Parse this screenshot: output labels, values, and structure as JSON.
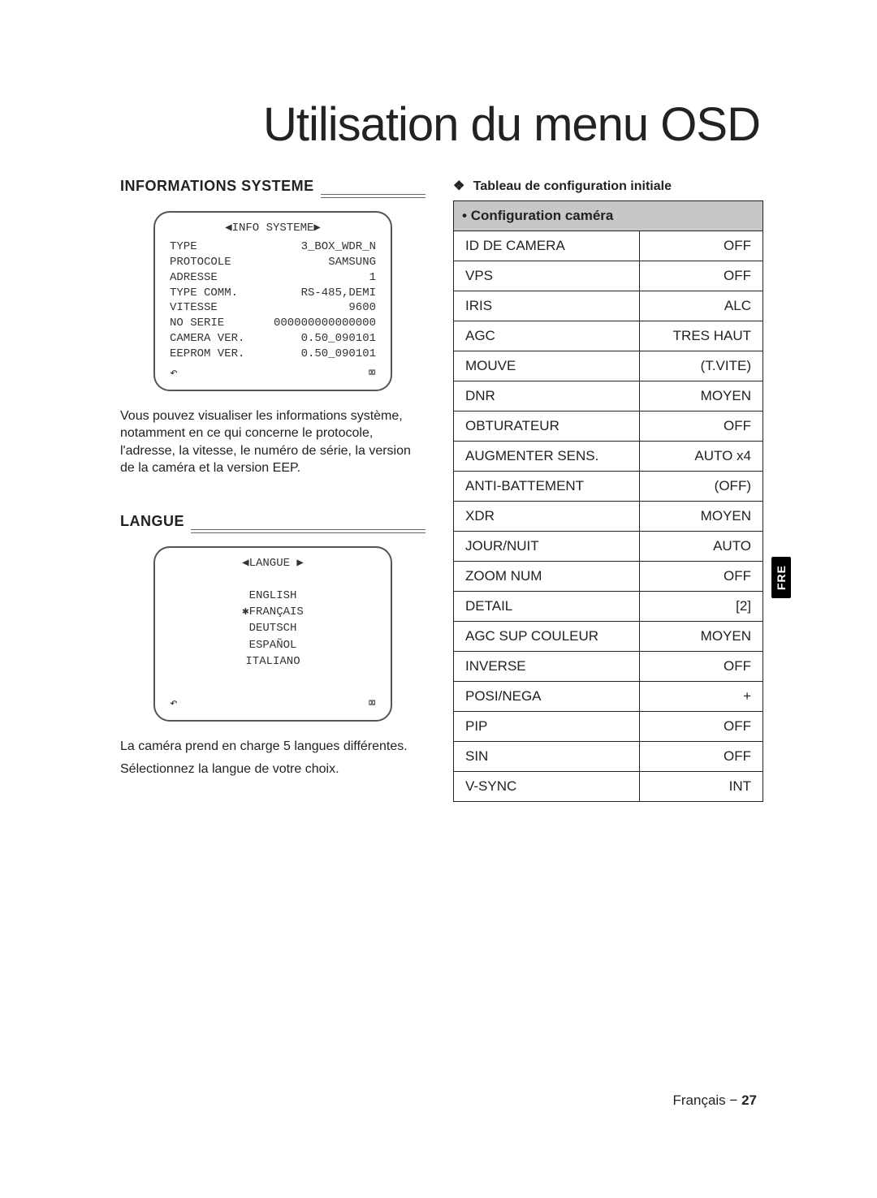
{
  "page_title": "Utilisation du menu OSD",
  "lang_tab": "FRE",
  "footer_lang": "Français",
  "footer_sep": "−",
  "footer_page": "27",
  "left": {
    "info": {
      "heading": "INFORMATIONS SYSTEME",
      "osd_title": "◀INFO SYSTEME▶",
      "rows": [
        {
          "l": "TYPE",
          "r": "3_BOX_WDR_N"
        },
        {
          "l": "PROTOCOLE",
          "r": "SAMSUNG"
        },
        {
          "l": "ADRESSE",
          "r": "1"
        },
        {
          "l": "TYPE COMM.",
          "r": "RS-485,DEMI"
        },
        {
          "l": "VITESSE",
          "r": "9600"
        },
        {
          "l": "NO SERIE",
          "r": "000000000000000"
        },
        {
          "l": "CAMERA VER.",
          "r": "0.50_090101"
        },
        {
          "l": "EEPROM VER.",
          "r": "0.50_090101"
        }
      ],
      "foot_left": "↶",
      "foot_right": "⌧",
      "text": "Vous pouvez visualiser les informations système, notamment en ce qui concerne le protocole, l'adresse, la vitesse, le numéro de série, la version de la caméra et la version EEP."
    },
    "langue": {
      "heading": "LANGUE",
      "osd_title": "◀LANGUE ▶",
      "options": [
        "ENGLISH",
        "✱FRANÇAIS",
        "DEUTSCH",
        "ESPAÑOL",
        "ITALIANO"
      ],
      "foot_left": "↶",
      "foot_right": "⌧",
      "text1": "La caméra prend en charge 5 langues différentes.",
      "text2": "Sélectionnez la langue de votre choix."
    }
  },
  "right": {
    "subhead_symbol": "❖",
    "subhead": "Tableau de configuration initiale",
    "table_header_bullet": "•",
    "table_header": "Configuration caméra",
    "rows": [
      {
        "l": "ID DE CAMERA",
        "r": "OFF"
      },
      {
        "l": "VPS",
        "r": "OFF"
      },
      {
        "l": "IRIS",
        "r": "ALC"
      },
      {
        "l": "AGC",
        "r": "TRES HAUT"
      },
      {
        "l": "MOUVE",
        "r": "(T.VITE)"
      },
      {
        "l": "DNR",
        "r": "MOYEN"
      },
      {
        "l": "OBTURATEUR",
        "r": "OFF"
      },
      {
        "l": "AUGMENTER SENS.",
        "r": "AUTO x4"
      },
      {
        "l": "ANTI-BATTEMENT",
        "r": "(OFF)"
      },
      {
        "l": "XDR",
        "r": "MOYEN"
      },
      {
        "l": "JOUR/NUIT",
        "r": "AUTO"
      },
      {
        "l": "ZOOM NUM",
        "r": "OFF"
      },
      {
        "l": "DETAIL",
        "r": "[2]"
      },
      {
        "l": "AGC SUP COULEUR",
        "r": "MOYEN"
      },
      {
        "l": "INVERSE",
        "r": "OFF"
      },
      {
        "l": "POSI/NEGA",
        "r": "+"
      },
      {
        "l": "PIP",
        "r": "OFF"
      },
      {
        "l": "SIN",
        "r": "OFF"
      },
      {
        "l": "V-SYNC",
        "r": "INT"
      }
    ]
  }
}
